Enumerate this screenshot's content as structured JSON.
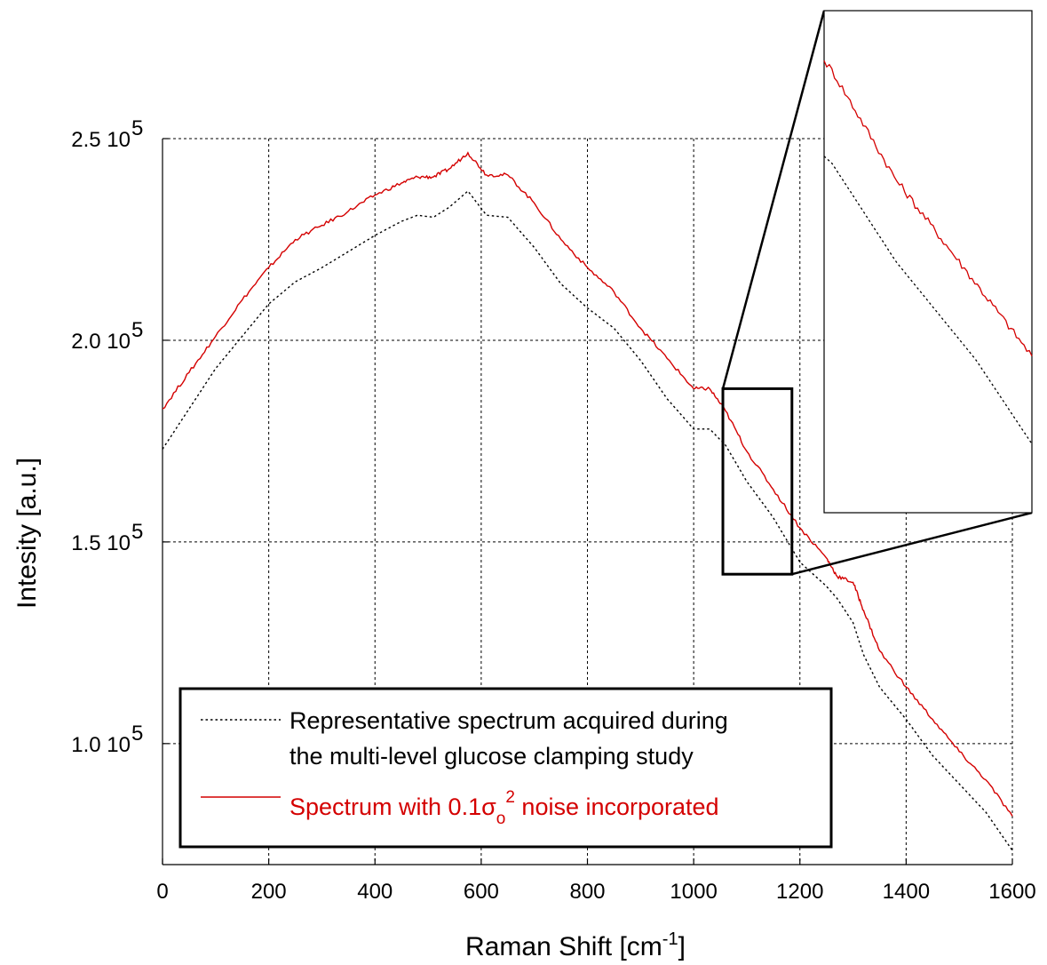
{
  "chart_data": {
    "type": "line",
    "xlabel": "Raman Shift",
    "xlabel_unit": "cm",
    "xlabel_unit_exp": "-1",
    "ylabel": "Intesity  [a.u.]",
    "xlim": [
      0,
      1600
    ],
    "ylim": [
      70000,
      250000
    ],
    "x_ticks": [
      0,
      200,
      400,
      600,
      800,
      1000,
      1200,
      1400,
      1600
    ],
    "x_tick_labels": [
      "0",
      "200",
      "400",
      "600",
      "800",
      "1000",
      "1200",
      "1400",
      "1600"
    ],
    "y_ticks": [
      100000,
      150000,
      200000,
      250000
    ],
    "y_tick_labels": [
      {
        "mantissa": "1.0 10",
        "exp": "5"
      },
      {
        "mantissa": "1.5 10",
        "exp": "5"
      },
      {
        "mantissa": "2.0 10",
        "exp": "5"
      },
      {
        "mantissa": "2.5 10",
        "exp": "5"
      }
    ],
    "grid": true,
    "legend_position": "bottom-left",
    "series": [
      {
        "name_lines": [
          "Representative spectrum acquired during",
          "the multi-level glucose clamping study"
        ],
        "style": "dotted",
        "color": "#000000",
        "x": [
          0,
          50,
          100,
          150,
          200,
          250,
          300,
          350,
          400,
          450,
          480,
          510,
          540,
          575,
          610,
          650,
          700,
          750,
          800,
          850,
          900,
          950,
          1000,
          1030,
          1060,
          1100,
          1150,
          1200,
          1250,
          1270,
          1300,
          1320,
          1350,
          1400,
          1450,
          1500,
          1550,
          1600
        ],
        "y": [
          173000,
          183000,
          193000,
          201000,
          209000,
          214500,
          218000,
          222000,
          226000,
          229500,
          231000,
          230500,
          233000,
          237000,
          231000,
          230500,
          223000,
          214000,
          208000,
          203000,
          195000,
          185500,
          178000,
          178000,
          174000,
          165000,
          156000,
          145000,
          139000,
          136000,
          130000,
          122000,
          114000,
          106000,
          97000,
          90000,
          83000,
          73500
        ]
      },
      {
        "name_prefix": "Spectrum with 0.1",
        "name_symbol": "σ",
        "name_sub": "o",
        "name_sup": "2",
        "name_suffix": " noise incorporated",
        "style": "solid",
        "color": "#d40000",
        "x": [
          0,
          50,
          100,
          150,
          200,
          250,
          300,
          350,
          400,
          450,
          480,
          510,
          540,
          575,
          610,
          650,
          700,
          750,
          800,
          850,
          900,
          950,
          1000,
          1030,
          1060,
          1100,
          1150,
          1200,
          1250,
          1270,
          1300,
          1320,
          1350,
          1400,
          1450,
          1500,
          1550,
          1600
        ],
        "y": [
          183000,
          192000,
          201000,
          210000,
          218000,
          225000,
          228500,
          232000,
          236000,
          239000,
          240500,
          240500,
          242500,
          246500,
          241000,
          241000,
          234000,
          225000,
          218000,
          212000,
          203000,
          195500,
          188000,
          188000,
          182500,
          172500,
          163000,
          153500,
          146000,
          141500,
          140000,
          133000,
          123000,
          114000,
          106000,
          98000,
          91000,
          82000
        ]
      }
    ],
    "zoom_box": {
      "x_range": [
        1055,
        1185
      ],
      "y_range": [
        142000,
        188000
      ]
    }
  }
}
